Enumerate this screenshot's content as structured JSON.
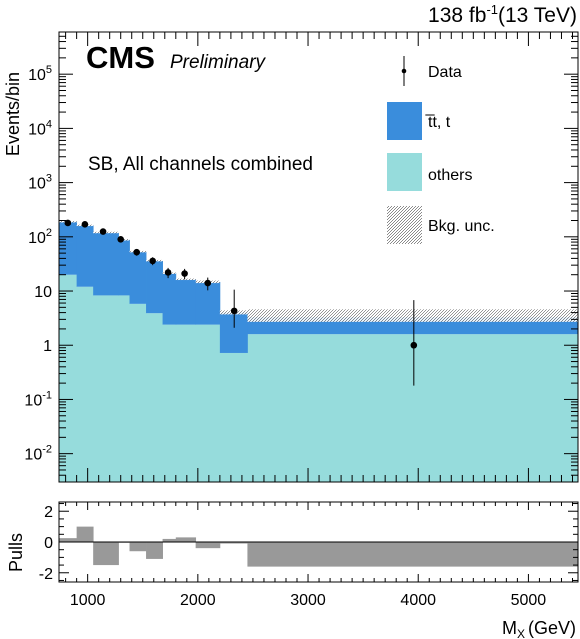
{
  "chart_data": {
    "type": "bar",
    "stacked": true,
    "log_scale_y": true,
    "header": {
      "lumi": "138 fb",
      "lumi_exp": "-1",
      "energy": "(13 TeV)",
      "experiment": "CMS",
      "status": "Preliminary",
      "region": "SB, All channels combined"
    },
    "xlabel": "M",
    "xlabel_sub": "X",
    "xlabel_unit": "(GeV)",
    "ylabel": "Events/bin",
    "pulls_ylabel": "Pulls",
    "xlim": [
      740,
      5450
    ],
    "ylim": [
      0.003,
      600000
    ],
    "pulls_ylim": [
      -2.6,
      2.6
    ],
    "x_ticks": [
      {
        "value": 1000,
        "label": "1000"
      },
      {
        "value": 2000,
        "label": "2000"
      },
      {
        "value": 3000,
        "label": "3000"
      },
      {
        "value": 4000,
        "label": "4000"
      },
      {
        "value": 5000,
        "label": "5000"
      }
    ],
    "y_ticks": [
      {
        "value": 0.01,
        "base": "10",
        "exp": "-2"
      },
      {
        "value": 0.1,
        "base": "10",
        "exp": "-1"
      },
      {
        "value": 1,
        "base": "1",
        "exp": ""
      },
      {
        "value": 10,
        "base": "10",
        "exp": ""
      },
      {
        "value": 100,
        "base": "10",
        "exp": "2"
      },
      {
        "value": 1000,
        "base": "10",
        "exp": "3"
      },
      {
        "value": 10000,
        "base": "10",
        "exp": "4"
      },
      {
        "value": 100000,
        "base": "10",
        "exp": "5"
      }
    ],
    "pulls_ticks": [
      {
        "value": 2,
        "label": "2"
      },
      {
        "value": 0,
        "label": "0"
      },
      {
        "value": -2,
        "label": "-2"
      }
    ],
    "legend": {
      "placement": "top-right",
      "entries": [
        {
          "key": "data",
          "label": "Data"
        },
        {
          "key": "ttbar",
          "label": "t̅t, t"
        },
        {
          "key": "others",
          "label": "others"
        },
        {
          "key": "unc",
          "label": "Bkg. unc."
        }
      ]
    },
    "colors": {
      "ttbar": "#3a8ddc",
      "others": "#96dcdc",
      "unc_hatch": "#9a9a9a",
      "pulls": "#999999",
      "data": "#000000"
    },
    "bin_edges": [
      740,
      900,
      1050,
      1280,
      1380,
      1530,
      1680,
      1800,
      1980,
      2200,
      2450,
      5450
    ],
    "series": [
      {
        "name": "others",
        "values": [
          20,
          12,
          8.3,
          8.3,
          5.8,
          3.9,
          2.4,
          2.4,
          2.4,
          0.72,
          1.6
        ]
      },
      {
        "name": "t̅t, t",
        "values": [
          170,
          150,
          110,
          80,
          47,
          32,
          19,
          14,
          12.3,
          3.3,
          1.7
        ]
      }
    ],
    "unc_band": [
      [
        190,
        196
      ],
      [
        162,
        168
      ],
      [
        118,
        124
      ],
      [
        88,
        91
      ],
      [
        52,
        55
      ],
      [
        36.5,
        37.5
      ],
      [
        21,
        22
      ],
      [
        16,
        17
      ],
      [
        14,
        15.6
      ],
      [
        3.7,
        4.4
      ],
      [
        2.7,
        4.6
      ]
    ],
    "data_points": [
      {
        "x": 820,
        "y": 180,
        "err_low": 13,
        "err_high": 14
      },
      {
        "x": 975,
        "y": 170,
        "err_low": 13,
        "err_high": 13
      },
      {
        "x": 1140,
        "y": 125,
        "err_low": 11,
        "err_high": 11
      },
      {
        "x": 1300,
        "y": 90,
        "err_low": 9.5,
        "err_high": 9.5
      },
      {
        "x": 1445,
        "y": 52,
        "err_low": 7.2,
        "err_high": 7.2
      },
      {
        "x": 1590,
        "y": 36,
        "err_low": 6,
        "err_high": 6
      },
      {
        "x": 1730,
        "y": 22,
        "err_low": 4.7,
        "err_high": 4.7
      },
      {
        "x": 1880,
        "y": 21,
        "err_low": 4.6,
        "err_high": 4.6
      },
      {
        "x": 2090,
        "y": 14,
        "err_low": 3.7,
        "err_high": 3.7
      },
      {
        "x": 2330,
        "y": 4.3,
        "err_low": 2.2,
        "err_high": 6.3
      },
      {
        "x": 3960,
        "y": 1,
        "err_low": 0.82,
        "err_high": 5.8
      }
    ],
    "pulls": [
      0.25,
      1.0,
      -1.5,
      0,
      -0.6,
      -1.1,
      0.2,
      0.3,
      -0.4,
      -0.1,
      -1.6
    ]
  }
}
